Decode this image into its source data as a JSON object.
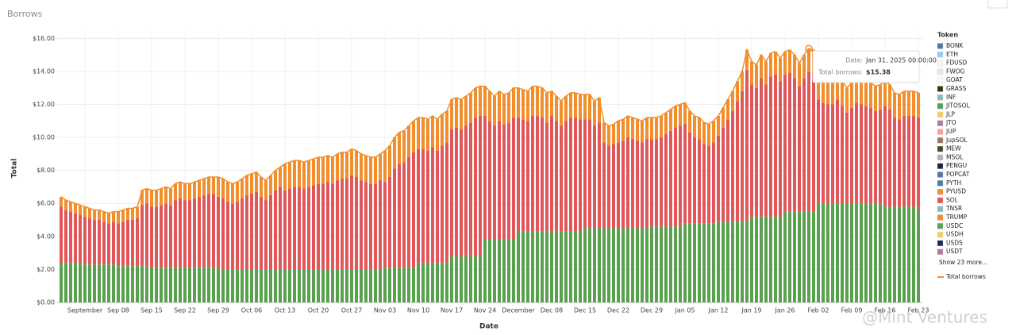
{
  "page_title": "Borrows",
  "chart_data": {
    "type": "stacked-bar",
    "x_label": "Date",
    "y_label": "Total",
    "legend_title": "Token",
    "legend_more": "Show 23 more...",
    "grid": true,
    "ylim": [
      0,
      16.4
    ],
    "yticks": [
      {
        "value": 0,
        "label": "$0.00"
      },
      {
        "value": 2,
        "label": "$2.00"
      },
      {
        "value": 4,
        "label": "$4.00"
      },
      {
        "value": 6,
        "label": "$6.00"
      },
      {
        "value": 8,
        "label": "$8.00"
      },
      {
        "value": 10,
        "label": "$10.00"
      },
      {
        "value": 12,
        "label": "$12.00"
      },
      {
        "value": 14,
        "label": "$14.00"
      },
      {
        "value": 16,
        "label": "$16.00"
      }
    ],
    "categories": [
      null,
      null,
      null,
      null,
      null,
      "September",
      null,
      null,
      null,
      null,
      null,
      null,
      "Sep 08",
      null,
      null,
      null,
      null,
      null,
      null,
      "Sep 15",
      null,
      null,
      null,
      null,
      null,
      null,
      "Sep 22",
      null,
      null,
      null,
      null,
      null,
      null,
      "Sep 29",
      null,
      null,
      null,
      null,
      null,
      null,
      "Oct 06",
      null,
      null,
      null,
      null,
      null,
      null,
      "Oct 13",
      null,
      null,
      null,
      null,
      null,
      null,
      "Oct 20",
      null,
      null,
      null,
      null,
      null,
      null,
      "Oct 27",
      null,
      null,
      null,
      null,
      null,
      null,
      "Nov 03",
      null,
      null,
      null,
      null,
      null,
      null,
      "Nov 10",
      null,
      null,
      null,
      null,
      null,
      null,
      "Nov 17",
      null,
      null,
      null,
      null,
      null,
      null,
      "Nov 24",
      null,
      null,
      null,
      null,
      null,
      null,
      "December",
      null,
      null,
      null,
      null,
      null,
      null,
      "Dec 08",
      null,
      null,
      null,
      null,
      null,
      null,
      "Dec 15",
      null,
      null,
      null,
      null,
      null,
      null,
      "Dec 22",
      null,
      null,
      null,
      null,
      null,
      null,
      "Dec 29",
      null,
      null,
      null,
      null,
      null,
      null,
      "Jan 05",
      null,
      null,
      null,
      null,
      null,
      null,
      "Jan 12",
      null,
      null,
      null,
      null,
      null,
      null,
      "Jan 19",
      null,
      null,
      null,
      null,
      null,
      null,
      "Jan 26",
      null,
      null,
      null,
      null,
      null,
      null,
      "Feb 02",
      null,
      null,
      null,
      null,
      null,
      null,
      "Feb 09",
      null,
      null,
      null,
      null,
      null,
      null,
      "Feb 16",
      null,
      null,
      null,
      null,
      null,
      null,
      "Feb 23"
    ],
    "series": [
      {
        "name": "BONK",
        "color": "#4e79a7"
      },
      {
        "name": "ETH",
        "color": "#a0cbe8"
      },
      {
        "name": "FDUSD",
        "color": "#f4f4f4"
      },
      {
        "name": "FWOG",
        "color": "#e6e6e6"
      },
      {
        "name": "GOAT",
        "color": "#fafafa"
      },
      {
        "name": "GRASS",
        "color": "#2b3a12"
      },
      {
        "name": "INF",
        "color": "#86bcb6"
      },
      {
        "name": "JITOSOL",
        "color": "#59a14f"
      },
      {
        "name": "JLP",
        "color": "#f1ce63"
      },
      {
        "name": "JTO",
        "color": "#b07aa1"
      },
      {
        "name": "JUP",
        "color": "#ff9d9a"
      },
      {
        "name": "JupSOL",
        "color": "#9d7660"
      },
      {
        "name": "MEW",
        "color": "#4b4b1f"
      },
      {
        "name": "MSOL",
        "color": "#bab0ac"
      },
      {
        "name": "PENGU",
        "color": "#1f2240"
      },
      {
        "name": "POPCAT",
        "color": "#4e79a7"
      },
      {
        "name": "PYTH",
        "color": "#4e79a7"
      },
      {
        "name": "PYUSD",
        "color": "#f28e2b",
        "values": [
          0.6,
          0.6,
          0.6,
          0.6,
          0.6,
          0.6,
          0.6,
          0.6,
          0.6,
          0.6,
          0.6,
          0.6,
          0.7,
          0.7,
          0.7,
          0.7,
          0.7,
          0.9,
          0.9,
          1.0,
          1.0,
          1.0,
          1.0,
          1.0,
          1.0,
          1.0,
          1.0,
          1.0,
          1.0,
          1.0,
          1.0,
          1.0,
          1.0,
          1.2,
          1.2,
          1.2,
          1.2,
          1.2,
          1.2,
          1.2,
          1.2,
          1.2,
          1.2,
          1.2,
          1.2,
          1.2,
          1.2,
          1.6,
          1.6,
          1.6,
          1.6,
          1.6,
          1.6,
          1.6,
          1.6,
          1.6,
          1.6,
          1.6,
          1.6,
          1.6,
          1.6,
          1.6,
          1.6,
          1.6,
          1.6,
          1.6,
          1.6,
          1.6,
          1.9,
          1.9,
          1.9,
          1.9,
          1.9,
          1.9,
          1.9,
          1.9,
          1.9,
          1.9,
          1.9,
          1.9,
          1.9,
          1.9,
          1.8,
          1.8,
          1.8,
          1.8,
          1.8,
          1.8,
          1.8,
          1.8,
          1.8,
          1.8,
          1.8,
          1.8,
          1.8,
          1.8,
          1.8,
          1.8,
          1.8,
          1.8,
          1.8,
          1.8,
          1.8,
          1.5,
          1.5,
          1.5,
          1.5,
          1.5,
          1.5,
          1.5,
          1.5,
          1.5,
          1.5,
          1.5,
          1.2,
          1.2,
          1.2,
          1.3,
          1.3,
          1.3,
          1.3,
          1.3,
          1.3,
          1.3,
          1.3,
          1.3,
          1.3,
          1.3,
          1.3,
          1.3,
          1.3,
          1.3,
          1.3,
          1.3,
          1.3,
          1.3,
          1.3,
          1.3,
          1.2,
          1.2,
          1.2,
          1.2,
          1.2,
          1.2,
          1.2,
          1.4,
          1.4,
          1.4,
          1.4,
          1.4,
          1.4,
          1.4,
          1.4,
          1.4,
          1.4,
          1.4,
          1.4,
          1.4,
          1.4,
          1.5,
          1.5,
          1.5,
          1.5,
          1.5,
          1.5,
          1.5,
          1.5,
          1.5,
          1.5,
          1.5,
          1.5,
          1.5,
          1.5,
          1.5,
          1.5,
          1.5,
          1.5,
          1.5,
          1.5,
          1.5,
          1.5
        ]
      },
      {
        "name": "SOL",
        "color": "#e15759",
        "values": [
          3.4,
          3.2,
          3.1,
          3.0,
          2.9,
          2.9,
          2.8,
          2.7,
          2.7,
          2.6,
          2.5,
          2.6,
          2.6,
          2.7,
          2.8,
          2.8,
          2.9,
          3.7,
          3.8,
          3.7,
          3.7,
          3.8,
          3.9,
          3.8,
          4.1,
          4.2,
          4.1,
          4.1,
          4.2,
          4.3,
          4.4,
          4.5,
          4.5,
          4.4,
          4.3,
          4.1,
          4.0,
          4.1,
          4.3,
          4.5,
          4.6,
          4.7,
          4.4,
          4.2,
          4.5,
          4.8,
          5.0,
          4.8,
          4.9,
          5.0,
          5.0,
          4.9,
          5.0,
          5.1,
          5.2,
          5.2,
          5.3,
          5.2,
          5.4,
          5.5,
          5.5,
          5.7,
          5.6,
          5.4,
          5.3,
          5.2,
          5.2,
          5.4,
          5.2,
          5.5,
          6.0,
          6.3,
          6.4,
          6.7,
          7.0,
          6.9,
          6.9,
          6.8,
          7.0,
          6.8,
          7.1,
          7.3,
          7.7,
          7.8,
          7.7,
          7.9,
          8.1,
          8.4,
          8.5,
          7.5,
          7.2,
          6.9,
          7.2,
          7.0,
          7.1,
          7.4,
          6.9,
          6.8,
          6.7,
          7.0,
          7.0,
          6.9,
          6.6,
          7.0,
          6.7,
          6.4,
          6.7,
          6.9,
          6.9,
          6.8,
          6.6,
          6.6,
          6.2,
          6.4,
          5.2,
          5.0,
          5.1,
          5.2,
          5.3,
          5.5,
          5.4,
          5.3,
          5.2,
          5.4,
          5.3,
          5.3,
          5.4,
          5.6,
          5.8,
          6.0,
          6.1,
          6.0,
          5.5,
          5.2,
          5.1,
          4.8,
          4.7,
          4.9,
          5.2,
          5.7,
          6.2,
          6.7,
          7.3,
          7.9,
          9.2,
          8.0,
          7.8,
          8.4,
          8.0,
          8.5,
          8.6,
          8.2,
          8.3,
          8.4,
          8.1,
          7.6,
          8.1,
          8.48,
          8.4,
          6.3,
          6.1,
          6.0,
          6.0,
          6.3,
          5.9,
          5.5,
          5.8,
          6.1,
          6.0,
          5.9,
          5.8,
          5.6,
          5.7,
          6.1,
          5.9,
          5.4,
          5.3,
          5.5,
          5.5,
          5.5,
          5.6
        ]
      },
      {
        "name": "TNSR",
        "color": "#86bcb6"
      },
      {
        "name": "TRUMP",
        "color": "#f28e2b"
      },
      {
        "name": "USDC",
        "color": "#59a14f",
        "values": [
          2.4,
          2.4,
          2.4,
          2.4,
          2.4,
          2.3,
          2.3,
          2.3,
          2.3,
          2.3,
          2.3,
          2.3,
          2.2,
          2.2,
          2.2,
          2.2,
          2.2,
          2.2,
          2.2,
          2.1,
          2.1,
          2.1,
          2.1,
          2.1,
          2.1,
          2.1,
          2.1,
          2.1,
          2.1,
          2.1,
          2.1,
          2.1,
          2.1,
          2.0,
          2.0,
          2.0,
          2.0,
          2.0,
          2.0,
          2.0,
          2.0,
          2.0,
          2.0,
          2.0,
          2.0,
          2.0,
          2.0,
          2.0,
          2.0,
          2.0,
          2.0,
          2.0,
          2.0,
          2.0,
          2.0,
          2.0,
          2.0,
          2.0,
          2.0,
          2.0,
          2.0,
          2.0,
          2.0,
          2.0,
          2.0,
          2.0,
          2.0,
          2.0,
          2.1,
          2.1,
          2.1,
          2.1,
          2.1,
          2.1,
          2.1,
          2.4,
          2.4,
          2.4,
          2.4,
          2.4,
          2.4,
          2.4,
          2.8,
          2.8,
          2.8,
          2.8,
          2.8,
          2.8,
          2.8,
          3.8,
          3.8,
          3.8,
          3.8,
          3.8,
          3.8,
          3.8,
          4.3,
          4.3,
          4.3,
          4.3,
          4.3,
          4.3,
          4.3,
          4.3,
          4.3,
          4.3,
          4.3,
          4.3,
          4.3,
          4.3,
          4.5,
          4.5,
          4.5,
          4.5,
          4.5,
          4.5,
          4.5,
          4.5,
          4.5,
          4.5,
          4.5,
          4.5,
          4.5,
          4.5,
          4.6,
          4.6,
          4.6,
          4.6,
          4.6,
          4.6,
          4.6,
          4.8,
          4.8,
          4.8,
          4.8,
          4.8,
          4.8,
          4.8,
          4.9,
          4.9,
          4.9,
          4.9,
          4.9,
          4.9,
          4.9,
          5.2,
          5.2,
          5.2,
          5.2,
          5.2,
          5.2,
          5.2,
          5.5,
          5.5,
          5.5,
          5.5,
          5.5,
          5.5,
          5.5,
          6.0,
          6.0,
          6.0,
          6.0,
          6.0,
          6.0,
          6.0,
          6.0,
          6.0,
          6.0,
          6.0,
          6.0,
          6.0,
          6.0,
          5.8,
          5.8,
          5.8,
          5.8,
          5.8,
          5.8,
          5.8,
          5.6
        ]
      },
      {
        "name": "USDH",
        "color": "#f1ce63"
      },
      {
        "name": "USDS",
        "color": "#1c2a5a"
      },
      {
        "name": "USDT",
        "color": "#b07aa1"
      }
    ],
    "line": {
      "name": "Total borrows",
      "color": "#f28e2b",
      "values": [
        6.4,
        6.2,
        6.1,
        6.0,
        5.9,
        5.8,
        5.7,
        5.6,
        5.6,
        5.5,
        5.4,
        5.5,
        5.5,
        5.6,
        5.7,
        5.7,
        5.8,
        6.8,
        6.9,
        6.8,
        6.8,
        6.9,
        7.0,
        6.9,
        7.2,
        7.3,
        7.2,
        7.2,
        7.3,
        7.4,
        7.5,
        7.6,
        7.6,
        7.6,
        7.5,
        7.3,
        7.2,
        7.3,
        7.5,
        7.7,
        7.8,
        7.9,
        7.6,
        7.4,
        7.7,
        8.0,
        8.2,
        8.4,
        8.5,
        8.6,
        8.6,
        8.5,
        8.6,
        8.7,
        8.8,
        8.8,
        8.9,
        8.8,
        9.0,
        9.1,
        9.1,
        9.3,
        9.2,
        9.0,
        8.9,
        8.8,
        8.8,
        9.0,
        9.2,
        9.5,
        10.0,
        10.3,
        10.4,
        10.7,
        11.0,
        11.2,
        11.2,
        11.1,
        11.3,
        11.1,
        11.4,
        11.6,
        12.3,
        12.4,
        12.3,
        12.5,
        12.7,
        13.0,
        13.1,
        13.1,
        12.8,
        12.5,
        12.8,
        12.6,
        12.7,
        13.0,
        13.0,
        12.9,
        12.8,
        13.1,
        13.1,
        13.0,
        12.7,
        12.8,
        12.5,
        12.2,
        12.5,
        12.7,
        12.7,
        12.6,
        12.6,
        12.6,
        12.2,
        12.4,
        10.9,
        10.7,
        10.8,
        11.0,
        11.1,
        11.3,
        11.2,
        11.1,
        11.0,
        11.2,
        11.2,
        11.2,
        11.3,
        11.5,
        11.7,
        11.9,
        12.0,
        12.1,
        11.6,
        11.3,
        11.2,
        10.9,
        10.8,
        11.0,
        11.3,
        11.8,
        12.3,
        12.8,
        13.4,
        14.0,
        15.3,
        14.6,
        14.4,
        15.0,
        14.6,
        15.1,
        15.2,
        14.8,
        15.2,
        15.3,
        15.0,
        14.5,
        15.0,
        15.38,
        15.3,
        13.8,
        13.6,
        13.5,
        13.5,
        13.8,
        13.4,
        13.0,
        13.3,
        13.6,
        13.5,
        13.4,
        13.3,
        13.1,
        13.2,
        13.4,
        13.2,
        12.7,
        12.6,
        12.8,
        12.8,
        12.8,
        12.7
      ]
    },
    "tooltip": {
      "date_key": "Date:",
      "date": "Jan 31, 2025 00:00:00",
      "value_key": "Total borrows:",
      "value": {
        "value": 15.38,
        "label": "$15.38"
      }
    },
    "watermark": "@Mint Ventures"
  }
}
